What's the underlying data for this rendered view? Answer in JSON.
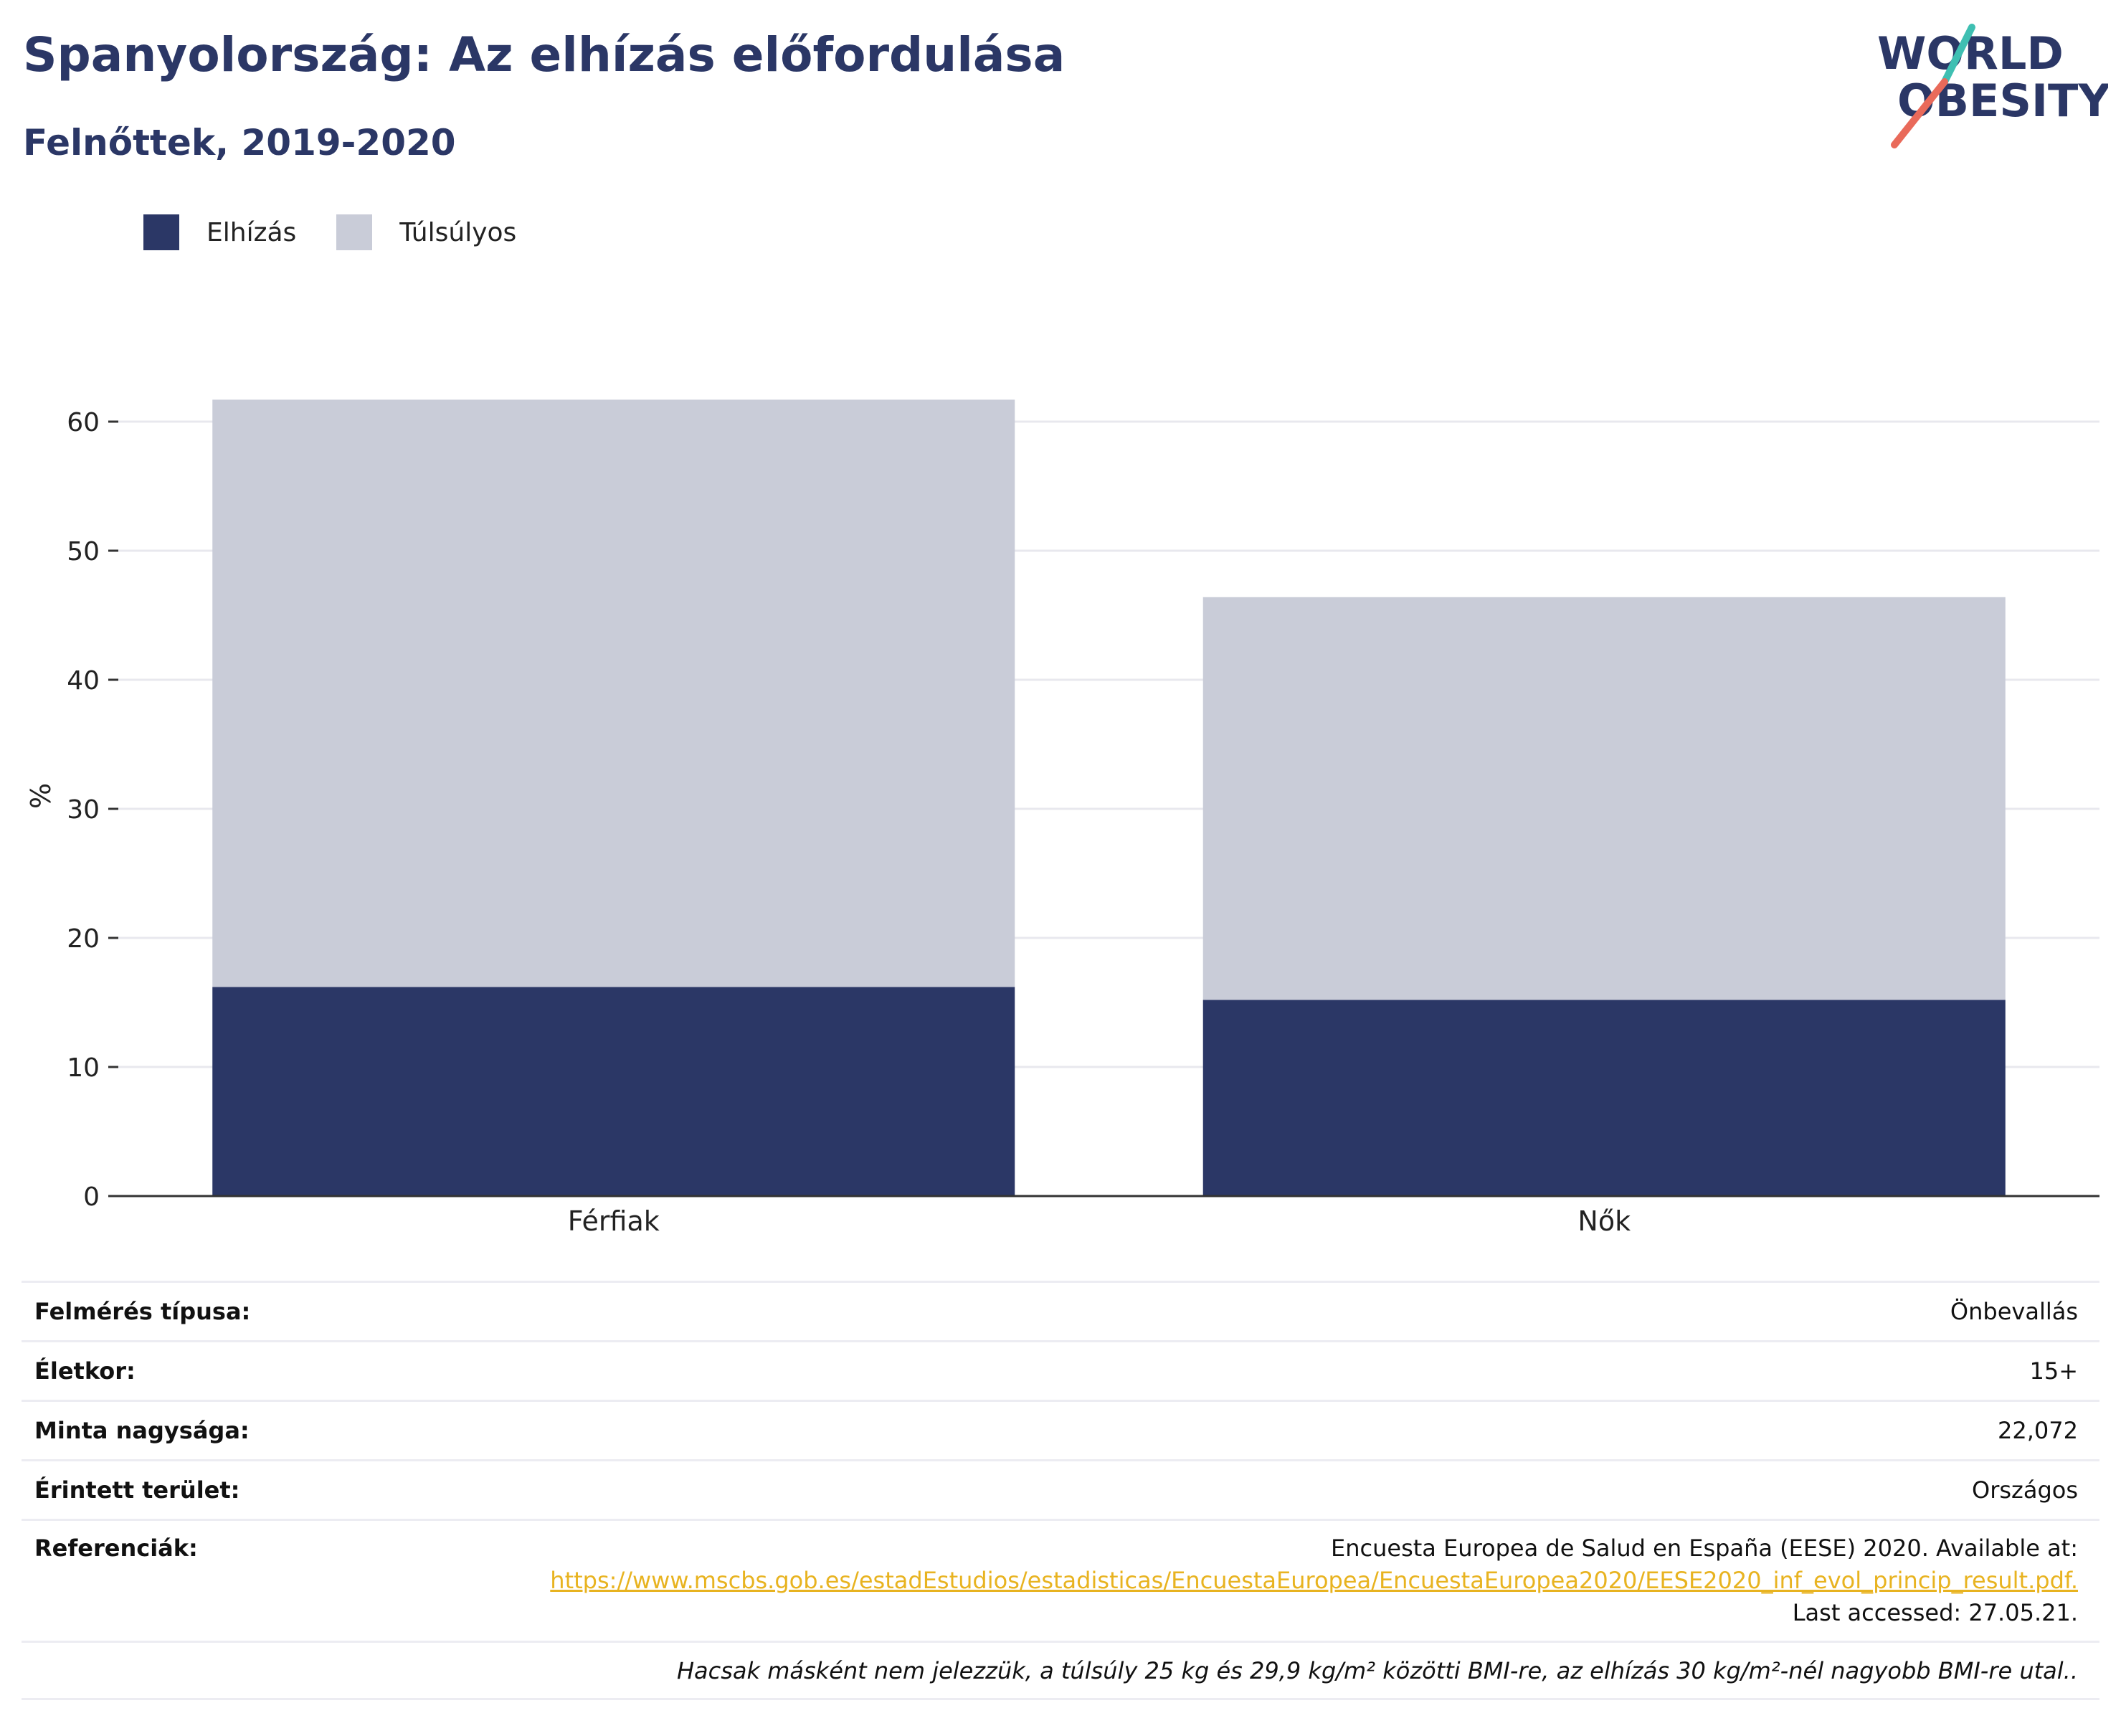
{
  "header": {
    "title": "Spanyolország: Az elhízás előfordulása",
    "subtitle": "Felnőttek, 2019-2020"
  },
  "logo": {
    "line1": "WORLD",
    "line2": "OBESITY",
    "colors": {
      "text": "#2b3766",
      "slash_top": "#3fbfb2",
      "slash_bottom": "#e96a5a"
    }
  },
  "legend": [
    {
      "label": "Elhízás",
      "color": "#2b3766"
    },
    {
      "label": "Túlsúlyos",
      "color": "#c9ccd8"
    }
  ],
  "chart_data": {
    "type": "bar",
    "stacked": true,
    "categories": [
      "Férfiak",
      "Nők"
    ],
    "series": [
      {
        "name": "Elhízás",
        "color": "#2b3766",
        "values": [
          16.2,
          15.2
        ]
      },
      {
        "name": "Túlsúlyos",
        "color": "#c9ccd8",
        "values": [
          45.5,
          31.2
        ]
      }
    ],
    "ylabel": "%",
    "ylim": [
      0,
      62
    ],
    "yticks": [
      0,
      10,
      20,
      30,
      40,
      50,
      60
    ],
    "grid": true,
    "legend_position": "top-left"
  },
  "info": {
    "survey_type": {
      "label": "Felmérés típusa:",
      "value": "Önbevallás"
    },
    "age": {
      "label": "Életkor:",
      "value": "15+"
    },
    "sample_size": {
      "label": "Minta nagysága:",
      "value": "22,072"
    },
    "area": {
      "label": "Érintett terület:",
      "value": "Országos"
    },
    "references": {
      "label": "Referenciák:",
      "line1": "Encuesta Europea de Salud en España (EESE) 2020. Available at:",
      "link": "https://www.mscbs.gob.es/estadEstudios/estadisticas/EncuestaEuropea/EncuestaEuropea2020/EESE2020_inf_evol_princip_result.pdf.",
      "line3": "Last accessed: 27.05.21."
    },
    "note": "Hacsak másként nem jelezzük, a túlsúly 25 kg és 29,9 kg/m² közötti BMI-re, az elhízás 30 kg/m²-nél nagyobb BMI-re utal.."
  }
}
